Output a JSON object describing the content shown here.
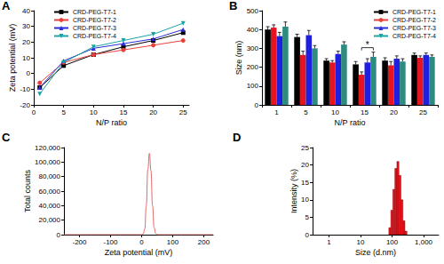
{
  "chart_data": [
    {
      "type": "line",
      "title": "A",
      "x_label": "N/P ratio",
      "y_label": "Zeta potential (mV)",
      "x": [
        1,
        5,
        10,
        15,
        20,
        25
      ],
      "series": [
        {
          "name": "CRD-PEG-T7-1",
          "color": "#000000",
          "marker": "square",
          "values": [
            -9,
            5,
            12,
            17,
            21,
            26
          ]
        },
        {
          "name": "CRD-PEG-T7-2",
          "color": "#e8413c",
          "marker": "circle",
          "values": [
            -6,
            7,
            12,
            15,
            18,
            21
          ]
        },
        {
          "name": "CRD-PEG-T7-3",
          "color": "#2b2bd9",
          "marker": "triangle-up",
          "values": [
            -9,
            8,
            16,
            19,
            22,
            28
          ]
        },
        {
          "name": "CRD-PEG-T7-4",
          "color": "#1aa3a3",
          "marker": "triangle-down",
          "values": [
            -13,
            7,
            17,
            21,
            25,
            32
          ]
        }
      ],
      "xlim": [
        0,
        26
      ],
      "xticks": [
        0,
        5,
        10,
        15,
        20,
        25
      ],
      "ylim": [
        -20,
        40
      ],
      "yticks": [
        -20,
        -10,
        0,
        10,
        20,
        30,
        40
      ],
      "grid": false,
      "legend": "upper left"
    },
    {
      "type": "bar",
      "title": "B",
      "x_label": "N/P ratio",
      "y_label": "Size (nm)",
      "categories": [
        "1",
        "5",
        "10",
        "15",
        "20",
        "25"
      ],
      "series": [
        {
          "name": "CRD-PEG-T7-1",
          "color": "#000000",
          "values": [
            400,
            360,
            235,
            215,
            235,
            265
          ],
          "errors": [
            15,
            15,
            10,
            15,
            15,
            10
          ]
        },
        {
          "name": "CRD-PEG-T7-2",
          "color": "#e6141e",
          "values": [
            410,
            265,
            225,
            160,
            210,
            250
          ],
          "errors": [
            15,
            20,
            10,
            15,
            20,
            10
          ]
        },
        {
          "name": "CRD-PEG-T7-3",
          "color": "#1f1fe0",
          "values": [
            365,
            370,
            270,
            225,
            245,
            265
          ],
          "errors": [
            20,
            25,
            15,
            20,
            15,
            10
          ]
        },
        {
          "name": "CRD-PEG-T7-4",
          "color": "#2e8b80",
          "values": [
            415,
            300,
            320,
            255,
            230,
            255
          ],
          "errors": [
            25,
            15,
            15,
            25,
            15,
            10
          ]
        }
      ],
      "ylim": [
        0,
        500
      ],
      "yticks": [
        0,
        100,
        200,
        300,
        400,
        500
      ],
      "grid": false,
      "legend": "upper right",
      "annotations": [
        {
          "text": "*",
          "category": "15",
          "from": "CRD-PEG-T7-2",
          "to": "CRD-PEG-T7-4"
        }
      ]
    },
    {
      "type": "line",
      "title": "C",
      "x_label": "Zeta potential (mV)",
      "y_label": "Total counts",
      "x": [
        -250,
        -100,
        0,
        5,
        10,
        15,
        20,
        25,
        30,
        35,
        40,
        45,
        50,
        100,
        230
      ],
      "values": [
        0,
        0,
        0,
        1000,
        8000,
        40000,
        90000,
        112000,
        88000,
        40000,
        10000,
        2000,
        0,
        0,
        0
      ],
      "color": "#e06666",
      "marker": "none",
      "xlim": [
        -250,
        230
      ],
      "xticks": [
        -200,
        -100,
        0,
        100,
        200
      ],
      "ylim": [
        0,
        120000
      ],
      "yticks": [
        0,
        {
          "value": 20000,
          "label": "20,000"
        },
        {
          "value": 40000,
          "label": "40,000"
        },
        {
          "value": 60000,
          "label": "60,000"
        },
        {
          "value": 80000,
          "label": "80,000"
        },
        {
          "value": 100000,
          "label": "100,000"
        },
        {
          "value": 120000,
          "label": "120,000"
        }
      ],
      "grid": false
    },
    {
      "type": "histogram",
      "title": "D",
      "x_label": "Size (d.nm)",
      "y_label": "Intensity (%)",
      "bins": [
        78.8,
        91.3,
        105.7,
        122.4,
        141.8,
        164.2,
        190.1,
        220.2,
        255,
        295.3
      ],
      "counts": [
        2,
        7,
        13,
        19,
        21,
        17,
        10,
        4,
        1
      ],
      "color": "#e8141e",
      "log": "x",
      "xlim": [
        0.3,
        3000
      ],
      "xticks": [
        1,
        10,
        100,
        {
          "value": 1000,
          "label": "1,000"
        }
      ],
      "ylim": [
        0,
        25
      ],
      "yticks": [
        0,
        5,
        10,
        15,
        20,
        25
      ],
      "grid": false
    }
  ]
}
